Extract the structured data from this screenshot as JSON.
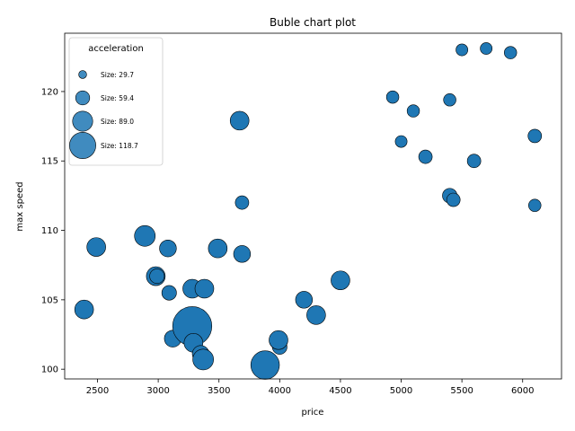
{
  "chart_data": {
    "type": "scatter",
    "title": "Buble chart plot",
    "xlabel": "price",
    "ylabel": "max speed",
    "xlim": [
      2230,
      6320
    ],
    "ylim": [
      99.3,
      124.2
    ],
    "x_ticks": [
      2500,
      3000,
      3500,
      4000,
      4500,
      5000,
      5500,
      6000
    ],
    "y_ticks": [
      100,
      105,
      110,
      115,
      120
    ],
    "color": "#1f77b4",
    "edge_color": "#000000",
    "grid": false,
    "legend": {
      "title": "acceleration",
      "placement": "top-left",
      "entries": [
        {
          "label": "Size: 29.7",
          "size": 29.7
        },
        {
          "label": "Size: 59.4",
          "size": 59.4
        },
        {
          "label": "Size: 89.0",
          "size": 89.0
        },
        {
          "label": "Size: 118.7",
          "size": 118.7
        }
      ]
    },
    "points": [
      {
        "x": 2390,
        "y": 104.3,
        "s": 45
      },
      {
        "x": 2490,
        "y": 108.8,
        "s": 45
      },
      {
        "x": 2890,
        "y": 109.6,
        "s": 52
      },
      {
        "x": 2980,
        "y": 106.7,
        "s": 45
      },
      {
        "x": 2990,
        "y": 106.7,
        "s": 30
      },
      {
        "x": 3080,
        "y": 108.7,
        "s": 38
      },
      {
        "x": 3090,
        "y": 105.5,
        "s": 30
      },
      {
        "x": 3120,
        "y": 102.2,
        "s": 38
      },
      {
        "x": 3280,
        "y": 105.8,
        "s": 45
      },
      {
        "x": 3280,
        "y": 103.1,
        "s": 118
      },
      {
        "x": 3290,
        "y": 101.9,
        "s": 45
      },
      {
        "x": 3350,
        "y": 101.1,
        "s": 38
      },
      {
        "x": 3370,
        "y": 100.7,
        "s": 52
      },
      {
        "x": 3380,
        "y": 105.8,
        "s": 45
      },
      {
        "x": 3490,
        "y": 108.7,
        "s": 45
      },
      {
        "x": 3670,
        "y": 117.9,
        "s": 45
      },
      {
        "x": 3690,
        "y": 112.0,
        "s": 26
      },
      {
        "x": 3690,
        "y": 108.3,
        "s": 38
      },
      {
        "x": 3880,
        "y": 100.3,
        "s": 80
      },
      {
        "x": 4000,
        "y": 101.6,
        "s": 30
      },
      {
        "x": 3990,
        "y": 102.1,
        "s": 45
      },
      {
        "x": 4200,
        "y": 105.0,
        "s": 38
      },
      {
        "x": 4300,
        "y": 103.9,
        "s": 45
      },
      {
        "x": 4500,
        "y": 106.4,
        "s": 45
      },
      {
        "x": 4930,
        "y": 119.6,
        "s": 22
      },
      {
        "x": 5000,
        "y": 116.4,
        "s": 20
      },
      {
        "x": 5100,
        "y": 118.6,
        "s": 22
      },
      {
        "x": 5200,
        "y": 115.3,
        "s": 26
      },
      {
        "x": 5400,
        "y": 119.4,
        "s": 22
      },
      {
        "x": 5400,
        "y": 112.5,
        "s": 30
      },
      {
        "x": 5430,
        "y": 112.2,
        "s": 26
      },
      {
        "x": 5500,
        "y": 123.0,
        "s": 20
      },
      {
        "x": 5600,
        "y": 115.0,
        "s": 26
      },
      {
        "x": 5700,
        "y": 123.1,
        "s": 20
      },
      {
        "x": 5900,
        "y": 122.8,
        "s": 22
      },
      {
        "x": 6100,
        "y": 116.8,
        "s": 26
      },
      {
        "x": 6100,
        "y": 111.8,
        "s": 22
      }
    ]
  }
}
